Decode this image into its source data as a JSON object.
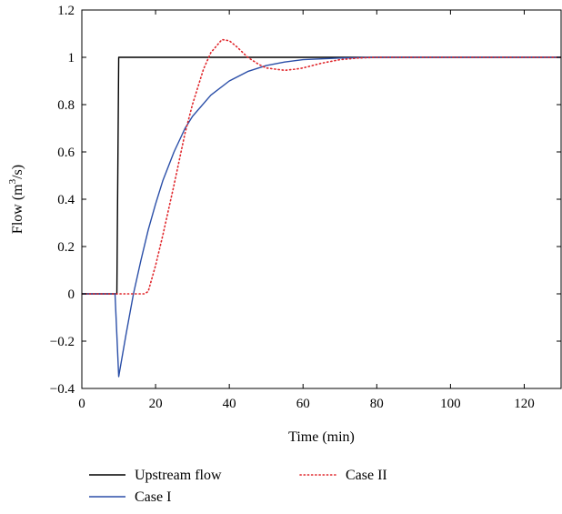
{
  "chart_data": {
    "type": "line",
    "title": "",
    "xlabel": "Time (min)",
    "ylabel": {
      "prefix": "Flow (m",
      "sup": "3",
      "suffix": "/s)"
    },
    "xlim": [
      0,
      130
    ],
    "ylim": [
      -0.4,
      1.2
    ],
    "xticks": [
      0,
      20,
      40,
      60,
      80,
      100,
      120
    ],
    "yticks": [
      -0.4,
      -0.2,
      0,
      0.2,
      0.4,
      0.6,
      0.8,
      1,
      1.2
    ],
    "xtick_labels": [
      "0",
      "20",
      "40",
      "60",
      "80",
      "100",
      "120"
    ],
    "ytick_labels": [
      "−0.4",
      "−0.2",
      "0",
      "0.2",
      "0.4",
      "0.6",
      "0.8",
      "1",
      "1.2"
    ],
    "grid": false,
    "legend_position": "bottom",
    "series": [
      {
        "name": "Upstream flow",
        "color": "#000000",
        "style": "solid",
        "x": [
          0,
          9.5,
          10,
          130
        ],
        "y": [
          0,
          0,
          1,
          1
        ]
      },
      {
        "name": "Case I",
        "color": "#2b4fa8",
        "style": "solid",
        "x": [
          0,
          9,
          10,
          12,
          14,
          16,
          18,
          20,
          22,
          25,
          28,
          30,
          35,
          40,
          45,
          50,
          55,
          60,
          70,
          80,
          100,
          130
        ],
        "y": [
          0,
          0,
          -0.35,
          -0.17,
          0.0,
          0.14,
          0.27,
          0.38,
          0.48,
          0.6,
          0.7,
          0.75,
          0.84,
          0.9,
          0.94,
          0.965,
          0.98,
          0.99,
          0.997,
          1.0,
          1.0,
          1.0
        ]
      },
      {
        "name": "Case II",
        "color": "#e0262b",
        "style": "dotted",
        "x": [
          0,
          17,
          18,
          20,
          22,
          25,
          28,
          30,
          33,
          35,
          38,
          40,
          42,
          45,
          48,
          50,
          55,
          58,
          60,
          65,
          70,
          75,
          80,
          90,
          100,
          130
        ],
        "y": [
          0,
          0,
          0.01,
          0.12,
          0.25,
          0.46,
          0.68,
          0.8,
          0.95,
          1.02,
          1.075,
          1.07,
          1.045,
          1.0,
          0.97,
          0.955,
          0.945,
          0.95,
          0.955,
          0.975,
          0.99,
          0.997,
          1.0,
          1.0,
          1.0,
          1.0
        ]
      }
    ]
  }
}
